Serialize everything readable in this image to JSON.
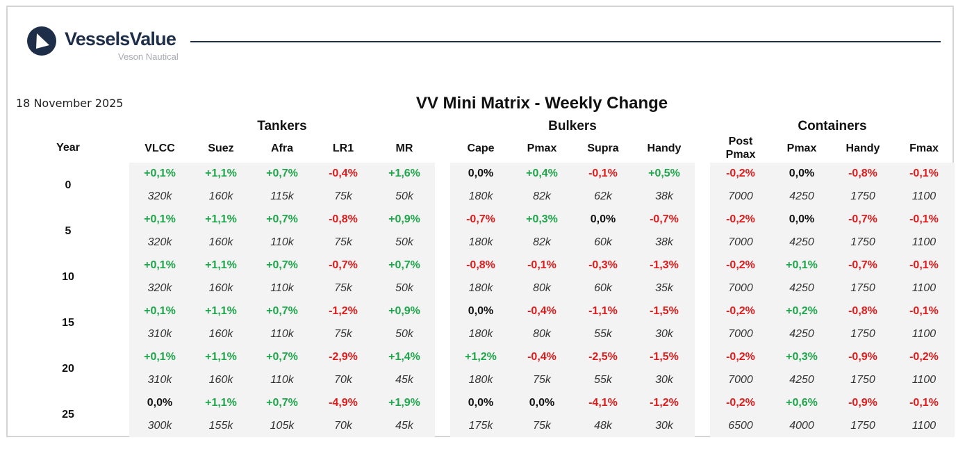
{
  "brand": {
    "name": "VesselsValue",
    "subtitle": "Veson Nautical"
  },
  "date": "18 November 2025",
  "title": "VV Mini Matrix - Weekly Change",
  "year_header": "Year",
  "colors": {
    "positive": "#1ea64a",
    "negative": "#e01b1b",
    "brand": "#1e2e48"
  },
  "groups": [
    {
      "name": "Tankers",
      "columns": [
        "VLCC",
        "Suez",
        "Afra",
        "LR1",
        "MR"
      ]
    },
    {
      "name": "Bulkers",
      "columns": [
        "Cape",
        "Pmax",
        "Supra",
        "Handy"
      ]
    },
    {
      "name": "Containers",
      "columns": [
        "Post\nPmax",
        "Pmax",
        "Handy",
        "Fmax"
      ]
    }
  ],
  "rows": [
    {
      "year": "0",
      "changes": [
        "+0,1%",
        "+1,1%",
        "+0,7%",
        "-0,4%",
        "+1,6%",
        "0,0%",
        "+0,4%",
        "-0,1%",
        "+0,5%",
        "-0,2%",
        "0,0%",
        "-0,8%",
        "-0,1%"
      ],
      "values": [
        "320k",
        "160k",
        "115k",
        "75k",
        "50k",
        "180k",
        "82k",
        "62k",
        "38k",
        "7000",
        "4250",
        "1750",
        "1100"
      ]
    },
    {
      "year": "5",
      "changes": [
        "+0,1%",
        "+1,1%",
        "+0,7%",
        "-0,8%",
        "+0,9%",
        "-0,7%",
        "+0,3%",
        "0,0%",
        "-0,7%",
        "-0,2%",
        "0,0%",
        "-0,7%",
        "-0,1%"
      ],
      "values": [
        "320k",
        "160k",
        "110k",
        "75k",
        "50k",
        "180k",
        "82k",
        "60k",
        "38k",
        "7000",
        "4250",
        "1750",
        "1100"
      ]
    },
    {
      "year": "10",
      "changes": [
        "+0,1%",
        "+1,1%",
        "+0,7%",
        "-0,7%",
        "+0,7%",
        "-0,8%",
        "-0,1%",
        "-0,3%",
        "-1,3%",
        "-0,2%",
        "+0,1%",
        "-0,7%",
        "-0,1%"
      ],
      "values": [
        "320k",
        "160k",
        "110k",
        "75k",
        "50k",
        "180k",
        "80k",
        "60k",
        "35k",
        "7000",
        "4250",
        "1750",
        "1100"
      ]
    },
    {
      "year": "15",
      "changes": [
        "+0,1%",
        "+1,1%",
        "+0,7%",
        "-1,2%",
        "+0,9%",
        "0,0%",
        "-0,4%",
        "-1,1%",
        "-1,5%",
        "-0,2%",
        "+0,2%",
        "-0,8%",
        "-0,1%"
      ],
      "values": [
        "310k",
        "160k",
        "110k",
        "75k",
        "50k",
        "180k",
        "80k",
        "55k",
        "30k",
        "7000",
        "4250",
        "1750",
        "1100"
      ]
    },
    {
      "year": "20",
      "changes": [
        "+0,1%",
        "+1,1%",
        "+0,7%",
        "-2,9%",
        "+1,4%",
        "+1,2%",
        "-0,4%",
        "-2,5%",
        "-1,5%",
        "-0,2%",
        "+0,3%",
        "-0,9%",
        "-0,2%"
      ],
      "values": [
        "310k",
        "160k",
        "110k",
        "70k",
        "45k",
        "180k",
        "75k",
        "55k",
        "30k",
        "7000",
        "4250",
        "1750",
        "1100"
      ]
    },
    {
      "year": "25",
      "changes": [
        "0,0%",
        "+1,1%",
        "+0,7%",
        "-4,9%",
        "+1,9%",
        "0,0%",
        "0,0%",
        "-4,1%",
        "-1,2%",
        "-0,2%",
        "+0,6%",
        "-0,9%",
        "-0,1%"
      ],
      "values": [
        "300k",
        "155k",
        "105k",
        "70k",
        "45k",
        "175k",
        "75k",
        "48k",
        "30k",
        "6500",
        "4000",
        "1750",
        "1100"
      ]
    }
  ]
}
